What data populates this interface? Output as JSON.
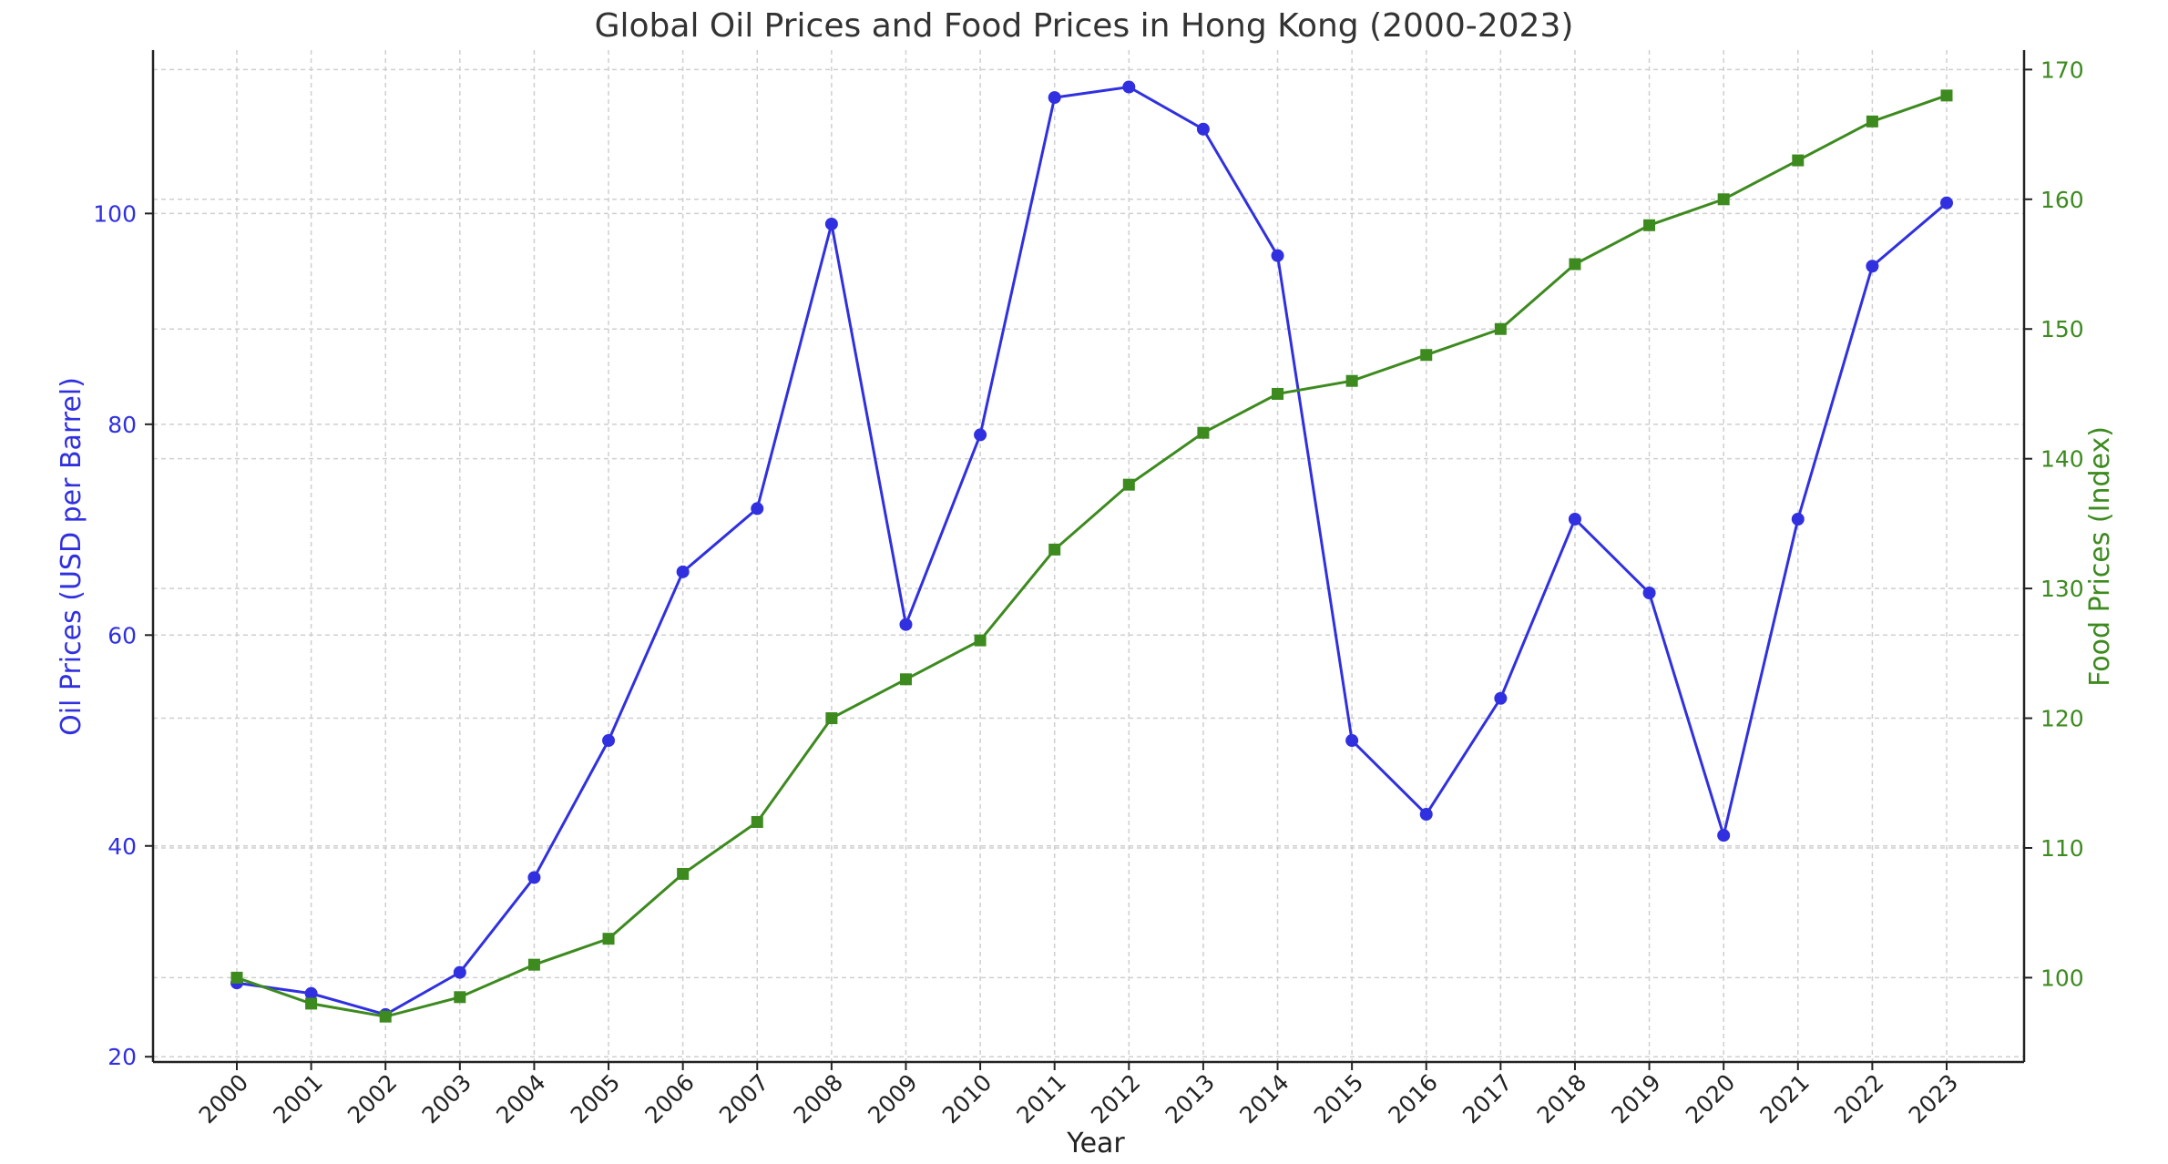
{
  "chart_data": {
    "type": "line",
    "title": "Global Oil Prices and Food Prices in Hong Kong (2000-2023)",
    "xlabel": "Year",
    "x": [
      "2000",
      "2001",
      "2002",
      "2003",
      "2004",
      "2005",
      "2006",
      "2007",
      "2008",
      "2009",
      "2010",
      "2011",
      "2012",
      "2013",
      "2014",
      "2015",
      "2016",
      "2017",
      "2018",
      "2019",
      "2020",
      "2021",
      "2022",
      "2023"
    ],
    "grid": true,
    "y_left": {
      "label": "Oil Prices (USD per Barrel)",
      "ylim": [
        19.5,
        115.5
      ],
      "ticks": [
        20,
        40,
        60,
        80,
        100
      ],
      "color": "#3030e0"
    },
    "y_right": {
      "label": "Food Prices (Index)",
      "ylim": [
        93.5,
        171.5
      ],
      "ticks": [
        100,
        110,
        120,
        130,
        140,
        150,
        160,
        170
      ],
      "color": "#3d8a1f"
    },
    "series": [
      {
        "axis": "left",
        "marker": "circle",
        "color": "#3030e0",
        "values": [
          27,
          26,
          24,
          28,
          37,
          50,
          66,
          72,
          99,
          61,
          79,
          111,
          112,
          108,
          96,
          50,
          43,
          54,
          71,
          64,
          41,
          71,
          95,
          101
        ]
      },
      {
        "axis": "right",
        "marker": "square",
        "color": "#3d8a1f",
        "values": [
          100,
          98,
          97,
          98.5,
          101,
          103,
          108,
          112,
          120,
          123,
          126,
          133,
          138,
          142,
          145,
          146,
          148,
          150,
          155,
          158,
          160,
          163,
          166,
          168
        ]
      }
    ]
  }
}
